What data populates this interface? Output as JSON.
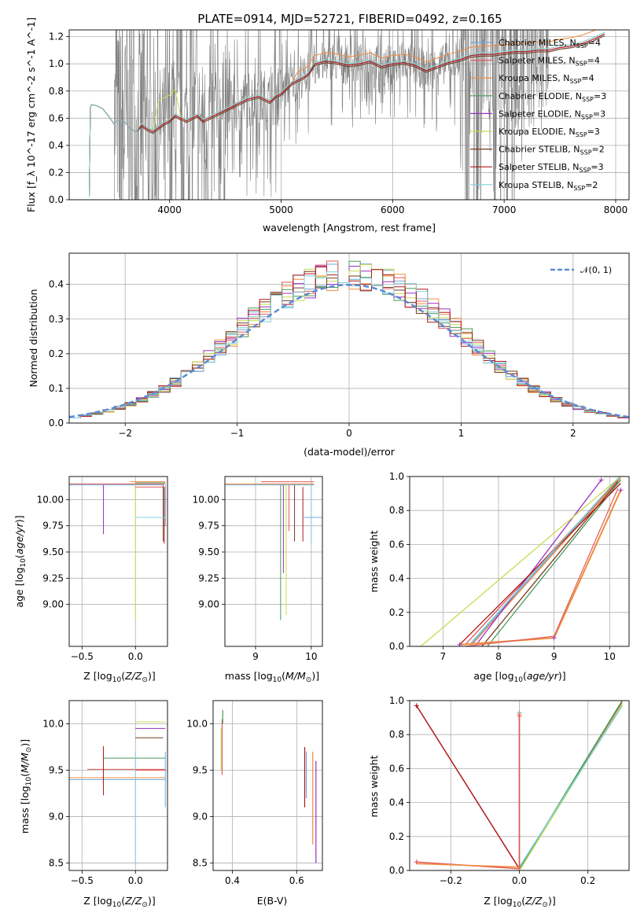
{
  "figure": {
    "title": "PLATE=0914, MJD=52721, FIBERID=0492, z=0.165"
  },
  "colors": {
    "data": "#808080",
    "models": [
      "#6fa8dc",
      "#e05a5a",
      "#f08c3c",
      "#4a9a5a",
      "#9b30c0",
      "#c8dc50",
      "#7a3a20",
      "#b01818",
      "#7fd0d8"
    ],
    "gauss": "#5b8bd6"
  },
  "chart_data": [
    {
      "type": "line",
      "name": "spectrum",
      "xlabel": "wavelength [Angstrom, rest frame]",
      "ylabel": "Flux [f_λ 10^-17 erg cm^-2 s^-1 A^-1]",
      "xlim": [
        3100,
        8120
      ],
      "ylim": [
        0,
        1.25
      ],
      "xticks": [
        4000,
        5000,
        6000,
        7000,
        8000
      ],
      "yticks": [
        0.0,
        0.2,
        0.4,
        0.6,
        0.8,
        1.0,
        1.2
      ],
      "legend_position": "top-right",
      "legend": [
        {
          "base": "Chabrier MILES, N",
          "n": "4"
        },
        {
          "base": "Salpeter MILES, N",
          "n": "4"
        },
        {
          "base": "Kroupa MILES, N",
          "n": "4"
        },
        {
          "base": "Chabrier ELODIE, N",
          "n": "3"
        },
        {
          "base": "Salpeter ELODIE, N",
          "n": "3"
        },
        {
          "base": "Kroupa ELODIE, N",
          "n": "3"
        },
        {
          "base": "Chabrier STELIB, N",
          "n": "2"
        },
        {
          "base": "Salpeter STELIB, N",
          "n": "3"
        },
        {
          "base": "Kroupa STELIB, N",
          "n": "2"
        }
      ],
      "model_x": [
        3280,
        3290,
        3300,
        3350,
        3400,
        3450,
        3500,
        3550,
        3600,
        3650,
        3700,
        3750,
        3800,
        3850,
        3900,
        3950,
        4000,
        4050,
        4100,
        4150,
        4200,
        4250,
        4300,
        4350,
        4400,
        4450,
        4500,
        4600,
        4700,
        4800,
        4850,
        4900,
        4950,
        5000,
        5050,
        5100,
        5150,
        5200,
        5250,
        5300,
        5400,
        5500,
        5600,
        5700,
        5800,
        5900,
        6000,
        6100,
        6200,
        6300,
        6400,
        6500,
        6600,
        6700,
        6800,
        6900,
        7000,
        7100,
        7200,
        7300,
        7400,
        7500,
        7600,
        7700,
        7800,
        7900
      ],
      "model_y": [
        0.02,
        0.68,
        0.7,
        0.69,
        0.67,
        0.62,
        0.56,
        0.59,
        0.57,
        0.52,
        0.5,
        0.55,
        0.52,
        0.5,
        0.53,
        0.56,
        0.58,
        0.62,
        0.6,
        0.58,
        0.6,
        0.62,
        0.58,
        0.6,
        0.62,
        0.64,
        0.66,
        0.7,
        0.74,
        0.76,
        0.74,
        0.72,
        0.76,
        0.78,
        0.82,
        0.86,
        0.88,
        0.9,
        0.93,
        1.0,
        1.02,
        1.01,
        0.99,
        1.0,
        1.02,
        0.98,
        1.0,
        1.01,
        0.99,
        0.95,
        0.98,
        1.01,
        1.03,
        1.06,
        1.07,
        1.07,
        1.08,
        1.09,
        1.09,
        1.1,
        1.1,
        1.12,
        1.13,
        1.15,
        1.18,
        1.22
      ],
      "data_x_range": [
        3500,
        7400
      ]
    },
    {
      "type": "line",
      "name": "residuals",
      "xlabel": "(data-model)/error",
      "ylabel": "Normed distribution",
      "xlim": [
        -2.5,
        2.5
      ],
      "ylim": [
        0,
        0.49
      ],
      "xticks": [
        -2,
        -1,
        0,
        1,
        2
      ],
      "yticks": [
        0.0,
        0.1,
        0.2,
        0.3,
        0.4
      ],
      "legend_position": "top-right",
      "gauss_label": "𝒩(0, 1)"
    },
    {
      "type": "line",
      "name": "age-Z",
      "xlabel_main": "Z [log",
      "xlabel_sub": "10",
      "xlabel_rest": "(Z/Z",
      "xlabel_end": ")]",
      "ylabel": "age  [log10(age/yr)]",
      "xlim": [
        -0.62,
        0.3
      ],
      "ylim": [
        8.6,
        10.22
      ],
      "xticks": [
        -0.5,
        0.0
      ],
      "xticklabels": [
        "−0.5",
        "0.0"
      ],
      "yticks": [
        9.0,
        9.25,
        9.5,
        9.75,
        10.0
      ],
      "yticklabels": [
        "9.00",
        "9.25",
        "9.50",
        "9.75",
        "10.00"
      ]
    },
    {
      "type": "line",
      "name": "age-mass",
      "xlabel": "mass [log10(M/M⊙)]",
      "xlim": [
        8.45,
        10.2
      ],
      "ylim": [
        8.6,
        10.22
      ],
      "xticks": [
        9,
        10
      ],
      "xticklabels": [
        "9",
        "10"
      ],
      "yticks": [
        9.0,
        9.25,
        9.5,
        9.75,
        10.0
      ],
      "yticklabels": [
        "9.00",
        "9.25",
        "9.50",
        "9.75",
        "10.00"
      ]
    },
    {
      "type": "line",
      "name": "massweight-age",
      "xlabel": "age  [log10(age/yr)]",
      "ylabel": "mass weight",
      "xlim": [
        6.4,
        10.35
      ],
      "ylim": [
        0,
        1.0
      ],
      "xticks": [
        7,
        8,
        9,
        10
      ],
      "xticklabels": [
        "7",
        "8",
        "9",
        "10"
      ],
      "yticks": [
        0.0,
        0.2,
        0.4,
        0.6,
        0.8,
        1.0
      ],
      "yticklabels": [
        "0.0",
        "0.2",
        "0.4",
        "0.6",
        "0.8",
        "1.0"
      ]
    },
    {
      "type": "line",
      "name": "mass-Z",
      "ylabel": "mass [log10(M/M⊙)]",
      "xlim": [
        -0.62,
        0.3
      ],
      "ylim": [
        8.42,
        10.25
      ],
      "xticks": [
        -0.5,
        0.0
      ],
      "xticklabels": [
        "−0.5",
        "0.0"
      ],
      "yticks": [
        8.5,
        9.0,
        9.5,
        10.0
      ],
      "yticklabels": [
        "8.5",
        "9.0",
        "9.5",
        "10.0"
      ]
    },
    {
      "type": "line",
      "name": "mass-EBV",
      "xlabel": "E(B-V)",
      "xlim": [
        0.34,
        0.68
      ],
      "ylim": [
        8.42,
        10.25
      ],
      "xticks": [
        0.4,
        0.6
      ],
      "xticklabels": [
        "0.4",
        "0.6"
      ],
      "yticks": [
        8.5,
        9.0,
        9.5,
        10.0
      ],
      "yticklabels": [
        "8.5",
        "9.0",
        "9.5",
        "10.0"
      ]
    },
    {
      "type": "line",
      "name": "massweight-Z",
      "ylabel": "mass weight",
      "xlim": [
        -0.32,
        0.32
      ],
      "ylim": [
        0,
        1.0
      ],
      "xticks": [
        -0.2,
        0.0,
        0.2
      ],
      "xticklabels": [
        "−0.2",
        "0.0",
        "0.2"
      ],
      "yticks": [
        0.0,
        0.2,
        0.4,
        0.6,
        0.8,
        1.0
      ],
      "yticklabels": [
        "0.0",
        "0.2",
        "0.4",
        "0.6",
        "0.8",
        "1.0"
      ]
    }
  ]
}
